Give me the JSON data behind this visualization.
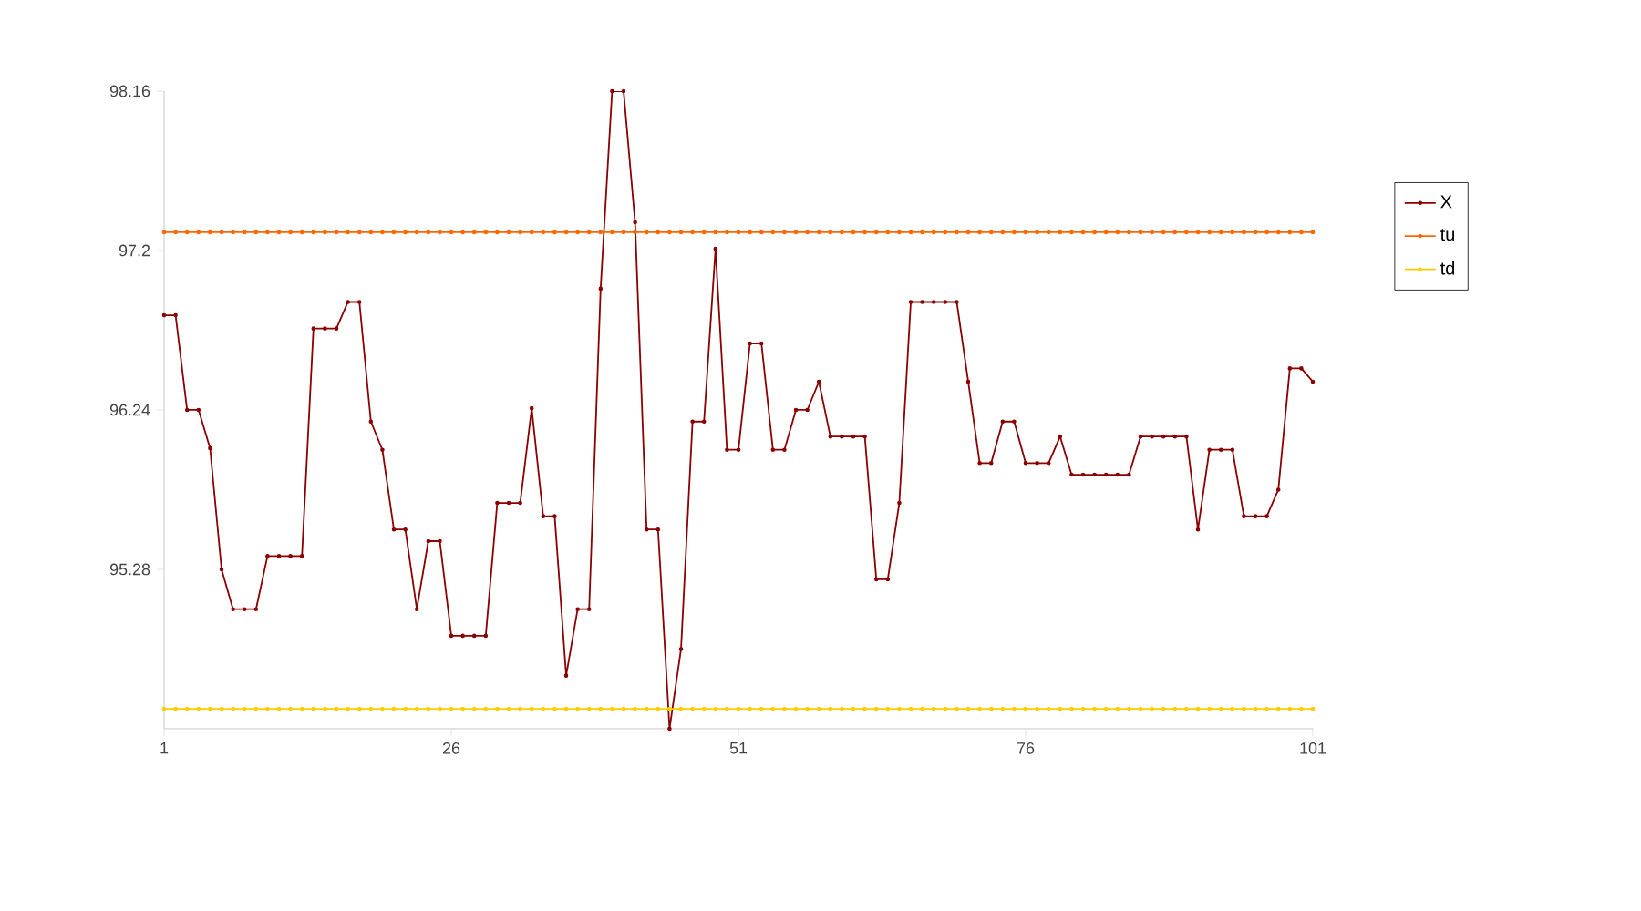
{
  "chart_data": {
    "type": "line",
    "x": [
      1,
      2,
      3,
      4,
      5,
      6,
      7,
      8,
      9,
      10,
      11,
      12,
      13,
      14,
      15,
      16,
      17,
      18,
      19,
      20,
      21,
      22,
      23,
      24,
      25,
      26,
      27,
      28,
      29,
      30,
      31,
      32,
      33,
      34,
      35,
      36,
      37,
      38,
      39,
      40,
      41,
      42,
      43,
      44,
      45,
      46,
      47,
      48,
      49,
      50,
      51,
      52,
      53,
      54,
      55,
      56,
      57,
      58,
      59,
      60,
      61,
      62,
      63,
      64,
      65,
      66,
      67,
      68,
      69,
      70,
      71,
      72,
      73,
      74,
      75,
      76,
      77,
      78,
      79,
      80,
      81,
      82,
      83,
      84,
      85,
      86,
      87,
      88,
      89,
      90,
      91,
      92,
      93,
      94,
      95,
      96,
      97,
      98,
      99,
      100,
      101
    ],
    "series": [
      {
        "name": "X",
        "color": "#8b0000",
        "values": [
          96.81,
          96.81,
          96.24,
          96.24,
          96.01,
          95.28,
          95.04,
          95.04,
          95.04,
          95.36,
          95.36,
          95.36,
          95.36,
          96.73,
          96.73,
          96.73,
          96.89,
          96.89,
          96.17,
          96.0,
          95.52,
          95.52,
          95.04,
          95.45,
          95.45,
          94.88,
          94.88,
          94.88,
          94.88,
          95.68,
          95.68,
          95.68,
          96.25,
          95.6,
          95.6,
          94.64,
          95.04,
          95.04,
          96.97,
          98.16,
          98.16,
          97.37,
          95.52,
          95.52,
          94.32,
          94.8,
          96.17,
          96.17,
          97.21,
          96.0,
          96.0,
          96.64,
          96.64,
          96.0,
          96.0,
          96.24,
          96.24,
          96.41,
          96.08,
          96.08,
          96.08,
          96.08,
          95.22,
          95.22,
          95.68,
          96.89,
          96.89,
          96.89,
          96.89,
          96.89,
          96.41,
          95.92,
          95.92,
          96.17,
          96.17,
          95.92,
          95.92,
          95.92,
          96.08,
          95.85,
          95.85,
          95.85,
          95.85,
          95.85,
          95.85,
          96.08,
          96.08,
          96.08,
          96.08,
          96.08,
          95.52,
          96.0,
          96.0,
          96.0,
          95.6,
          95.6,
          95.6,
          95.76,
          96.49,
          96.49,
          96.41
        ]
      },
      {
        "name": "tu",
        "color": "#ff6600",
        "values": [
          97.31,
          97.31,
          97.31,
          97.31,
          97.31,
          97.31,
          97.31,
          97.31,
          97.31,
          97.31,
          97.31,
          97.31,
          97.31,
          97.31,
          97.31,
          97.31,
          97.31,
          97.31,
          97.31,
          97.31,
          97.31,
          97.31,
          97.31,
          97.31,
          97.31,
          97.31,
          97.31,
          97.31,
          97.31,
          97.31,
          97.31,
          97.31,
          97.31,
          97.31,
          97.31,
          97.31,
          97.31,
          97.31,
          97.31,
          97.31,
          97.31,
          97.31,
          97.31,
          97.31,
          97.31,
          97.31,
          97.31,
          97.31,
          97.31,
          97.31,
          97.31,
          97.31,
          97.31,
          97.31,
          97.31,
          97.31,
          97.31,
          97.31,
          97.31,
          97.31,
          97.31,
          97.31,
          97.31,
          97.31,
          97.31,
          97.31,
          97.31,
          97.31,
          97.31,
          97.31,
          97.31,
          97.31,
          97.31,
          97.31,
          97.31,
          97.31,
          97.31,
          97.31,
          97.31,
          97.31,
          97.31,
          97.31,
          97.31,
          97.31,
          97.31,
          97.31,
          97.31,
          97.31,
          97.31,
          97.31,
          97.31,
          97.31,
          97.31,
          97.31,
          97.31,
          97.31,
          97.31,
          97.31,
          97.31,
          97.31,
          97.31
        ]
      },
      {
        "name": "td",
        "color": "#ffcc00",
        "values": [
          94.44,
          94.44,
          94.44,
          94.44,
          94.44,
          94.44,
          94.44,
          94.44,
          94.44,
          94.44,
          94.44,
          94.44,
          94.44,
          94.44,
          94.44,
          94.44,
          94.44,
          94.44,
          94.44,
          94.44,
          94.44,
          94.44,
          94.44,
          94.44,
          94.44,
          94.44,
          94.44,
          94.44,
          94.44,
          94.44,
          94.44,
          94.44,
          94.44,
          94.44,
          94.44,
          94.44,
          94.44,
          94.44,
          94.44,
          94.44,
          94.44,
          94.44,
          94.44,
          94.44,
          94.44,
          94.44,
          94.44,
          94.44,
          94.44,
          94.44,
          94.44,
          94.44,
          94.44,
          94.44,
          94.44,
          94.44,
          94.44,
          94.44,
          94.44,
          94.44,
          94.44,
          94.44,
          94.44,
          94.44,
          94.44,
          94.44,
          94.44,
          94.44,
          94.44,
          94.44,
          94.44,
          94.44,
          94.44,
          94.44,
          94.44,
          94.44,
          94.44,
          94.44,
          94.44,
          94.44,
          94.44,
          94.44,
          94.44,
          94.44,
          94.44,
          94.44,
          94.44,
          94.44,
          94.44,
          94.44,
          94.44,
          94.44,
          94.44,
          94.44,
          94.44,
          94.44,
          94.44,
          94.44,
          94.44,
          94.44,
          94.44
        ]
      }
    ],
    "xlim": [
      1,
      101
    ],
    "xticks": [
      1,
      26,
      51,
      76,
      101
    ],
    "ylim": [
      94.32,
      98.16
    ],
    "yticks": [
      95.28,
      96.24,
      97.2,
      98.16
    ],
    "legend": "right",
    "marker": "circle",
    "line_style": "solid"
  }
}
